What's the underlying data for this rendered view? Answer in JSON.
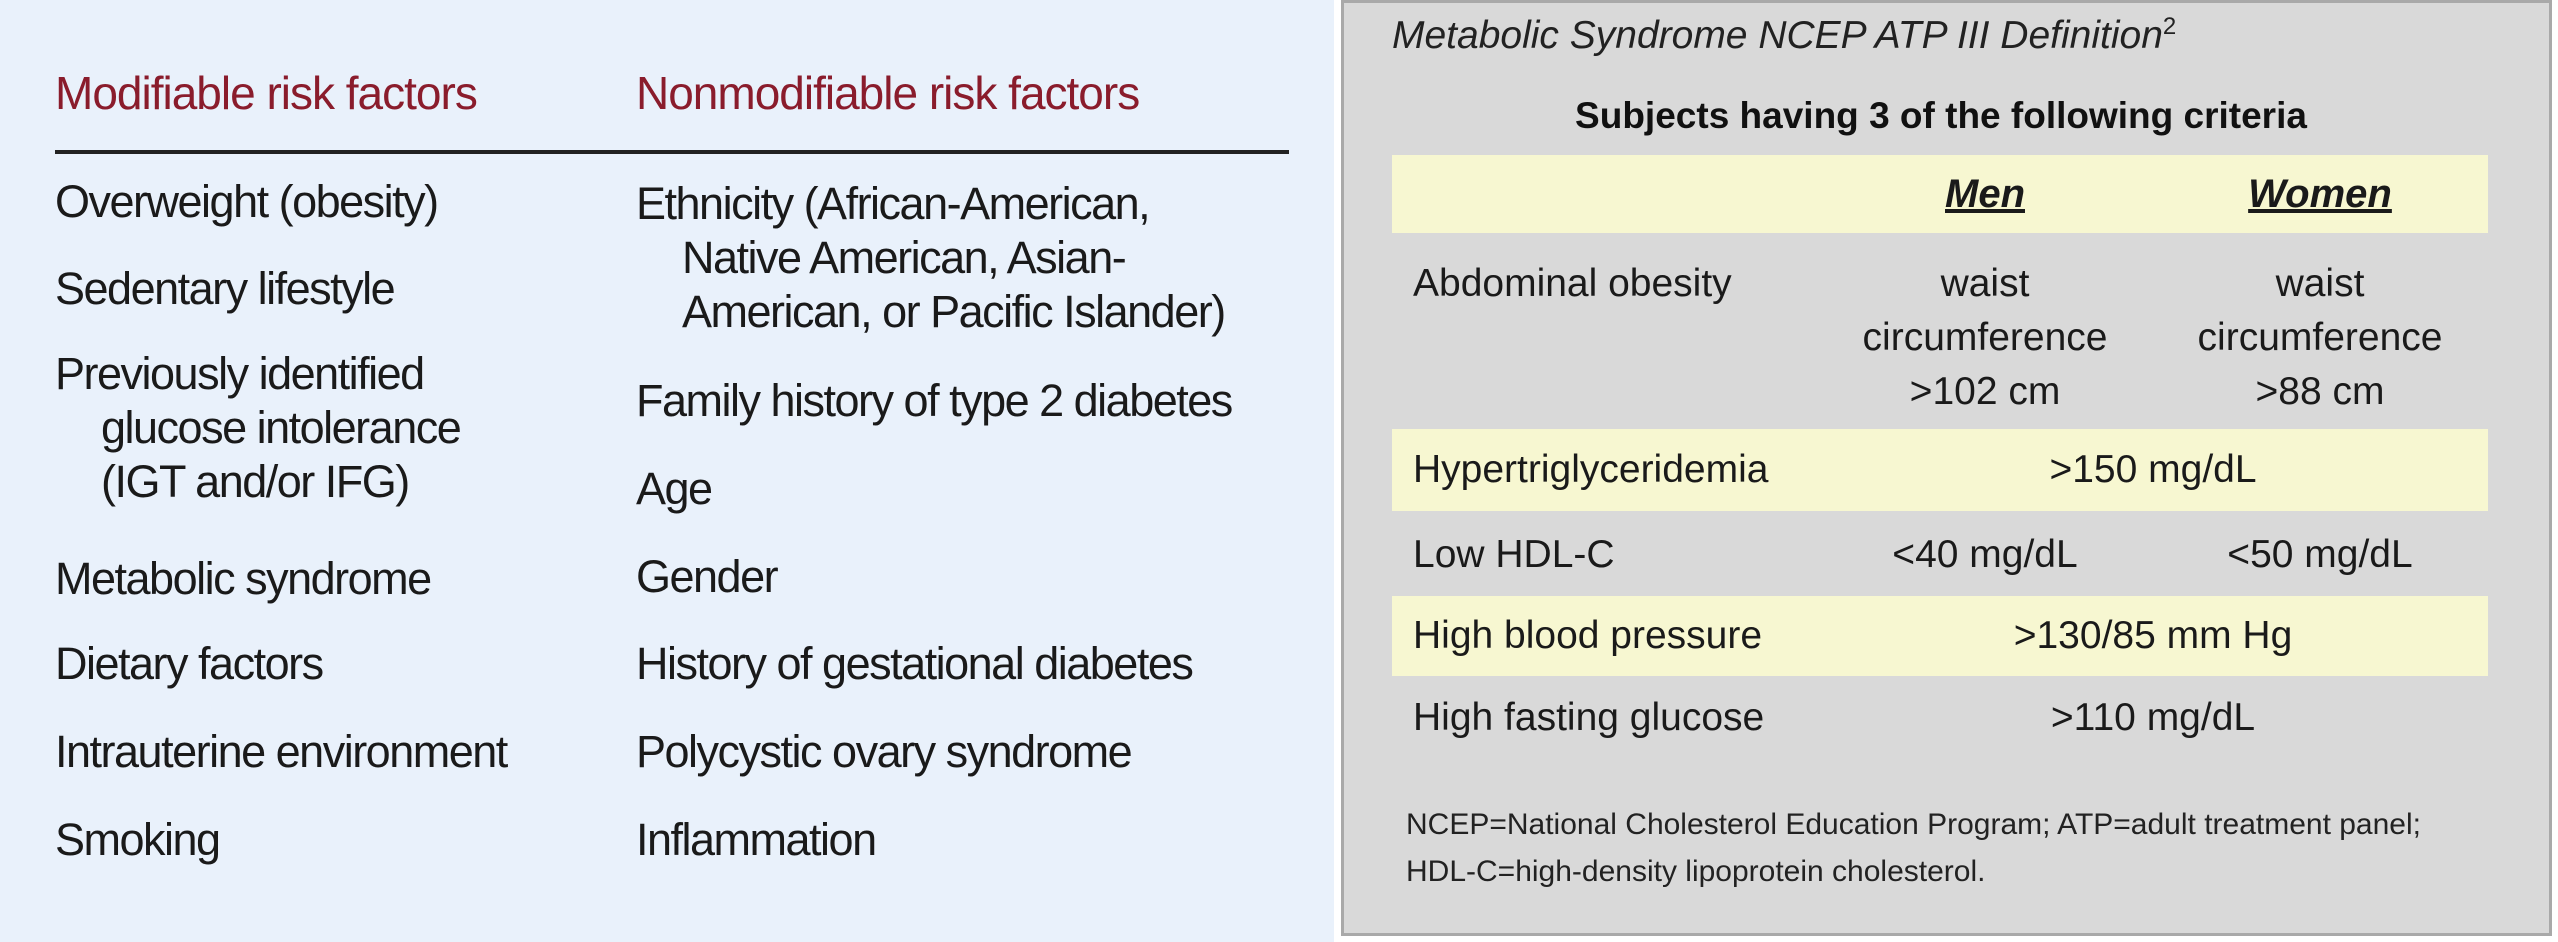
{
  "risk_factors": {
    "headers": [
      "Modifiable risk factors",
      "Nonmodifiable risk factors"
    ],
    "modifiable": [
      [
        "Overweight (obesity)"
      ],
      [
        "Sedentary lifestyle"
      ],
      [
        "Previously identified",
        "glucose intolerance",
        "(IGT and/or IFG)"
      ],
      [
        "Metabolic syndrome"
      ],
      [
        "Dietary factors"
      ],
      [
        "Intrauterine environment"
      ],
      [
        "Smoking"
      ]
    ],
    "nonmodifiable": [
      [
        "Ethnicity (African-American,",
        "Native American, Asian-",
        "American, or Pacific Islander)"
      ],
      [
        "Family history of type 2 diabetes"
      ],
      [
        "Age"
      ],
      [
        "Gender"
      ],
      [
        "History of gestational diabetes"
      ],
      [
        "Polycystic ovary syndrome"
      ],
      [
        "Inflammation"
      ]
    ]
  },
  "definition": {
    "title": "Metabolic Syndrome NCEP ATP III Definition",
    "title_superscript": "2",
    "subtitle": "Subjects having 3 of the following criteria",
    "columns": [
      "Men",
      "Women"
    ],
    "rows": [
      {
        "criterion": "Abdominal obesity",
        "men": [
          "waist",
          "circumference",
          ">102 cm"
        ],
        "women": [
          "waist",
          "circumference",
          ">88 cm"
        ]
      },
      {
        "criterion": "Hypertriglyceridemia",
        "both": ">150 mg/dL"
      },
      {
        "criterion": "Low HDL-C",
        "men": [
          "<40 mg/dL"
        ],
        "women": [
          "<50 mg/dL"
        ]
      },
      {
        "criterion": "High blood pressure",
        "both": ">130/85 mm Hg"
      },
      {
        "criterion": "High fasting glucose",
        "both": ">110 mg/dL"
      }
    ],
    "footnote": [
      "NCEP=National Cholesterol Education Program; ATP=adult treatment panel;",
      "HDL-C=high-density lipoprotein cholesterol."
    ]
  }
}
